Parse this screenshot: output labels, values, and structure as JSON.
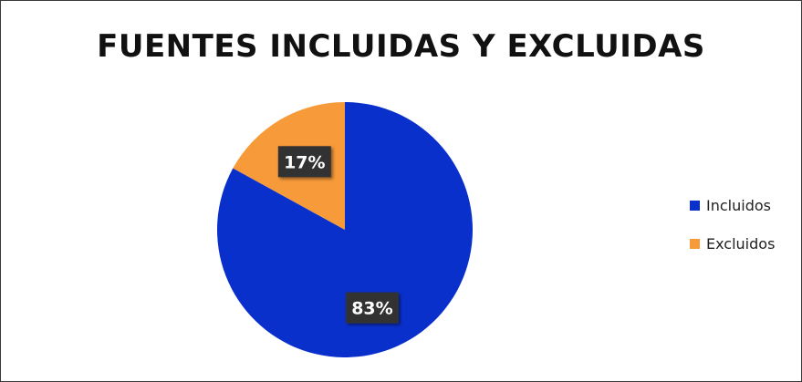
{
  "chart_data": {
    "type": "pie",
    "title": "FUENTES INCLUIDAS Y EXCLUIDAS",
    "categories": [
      "Incluidos",
      "Excluidos"
    ],
    "values": [
      83,
      17
    ],
    "labels": [
      "83%",
      "17%"
    ],
    "colors": [
      "#0A30CC",
      "#F79A3A"
    ],
    "legend_position": "right"
  }
}
